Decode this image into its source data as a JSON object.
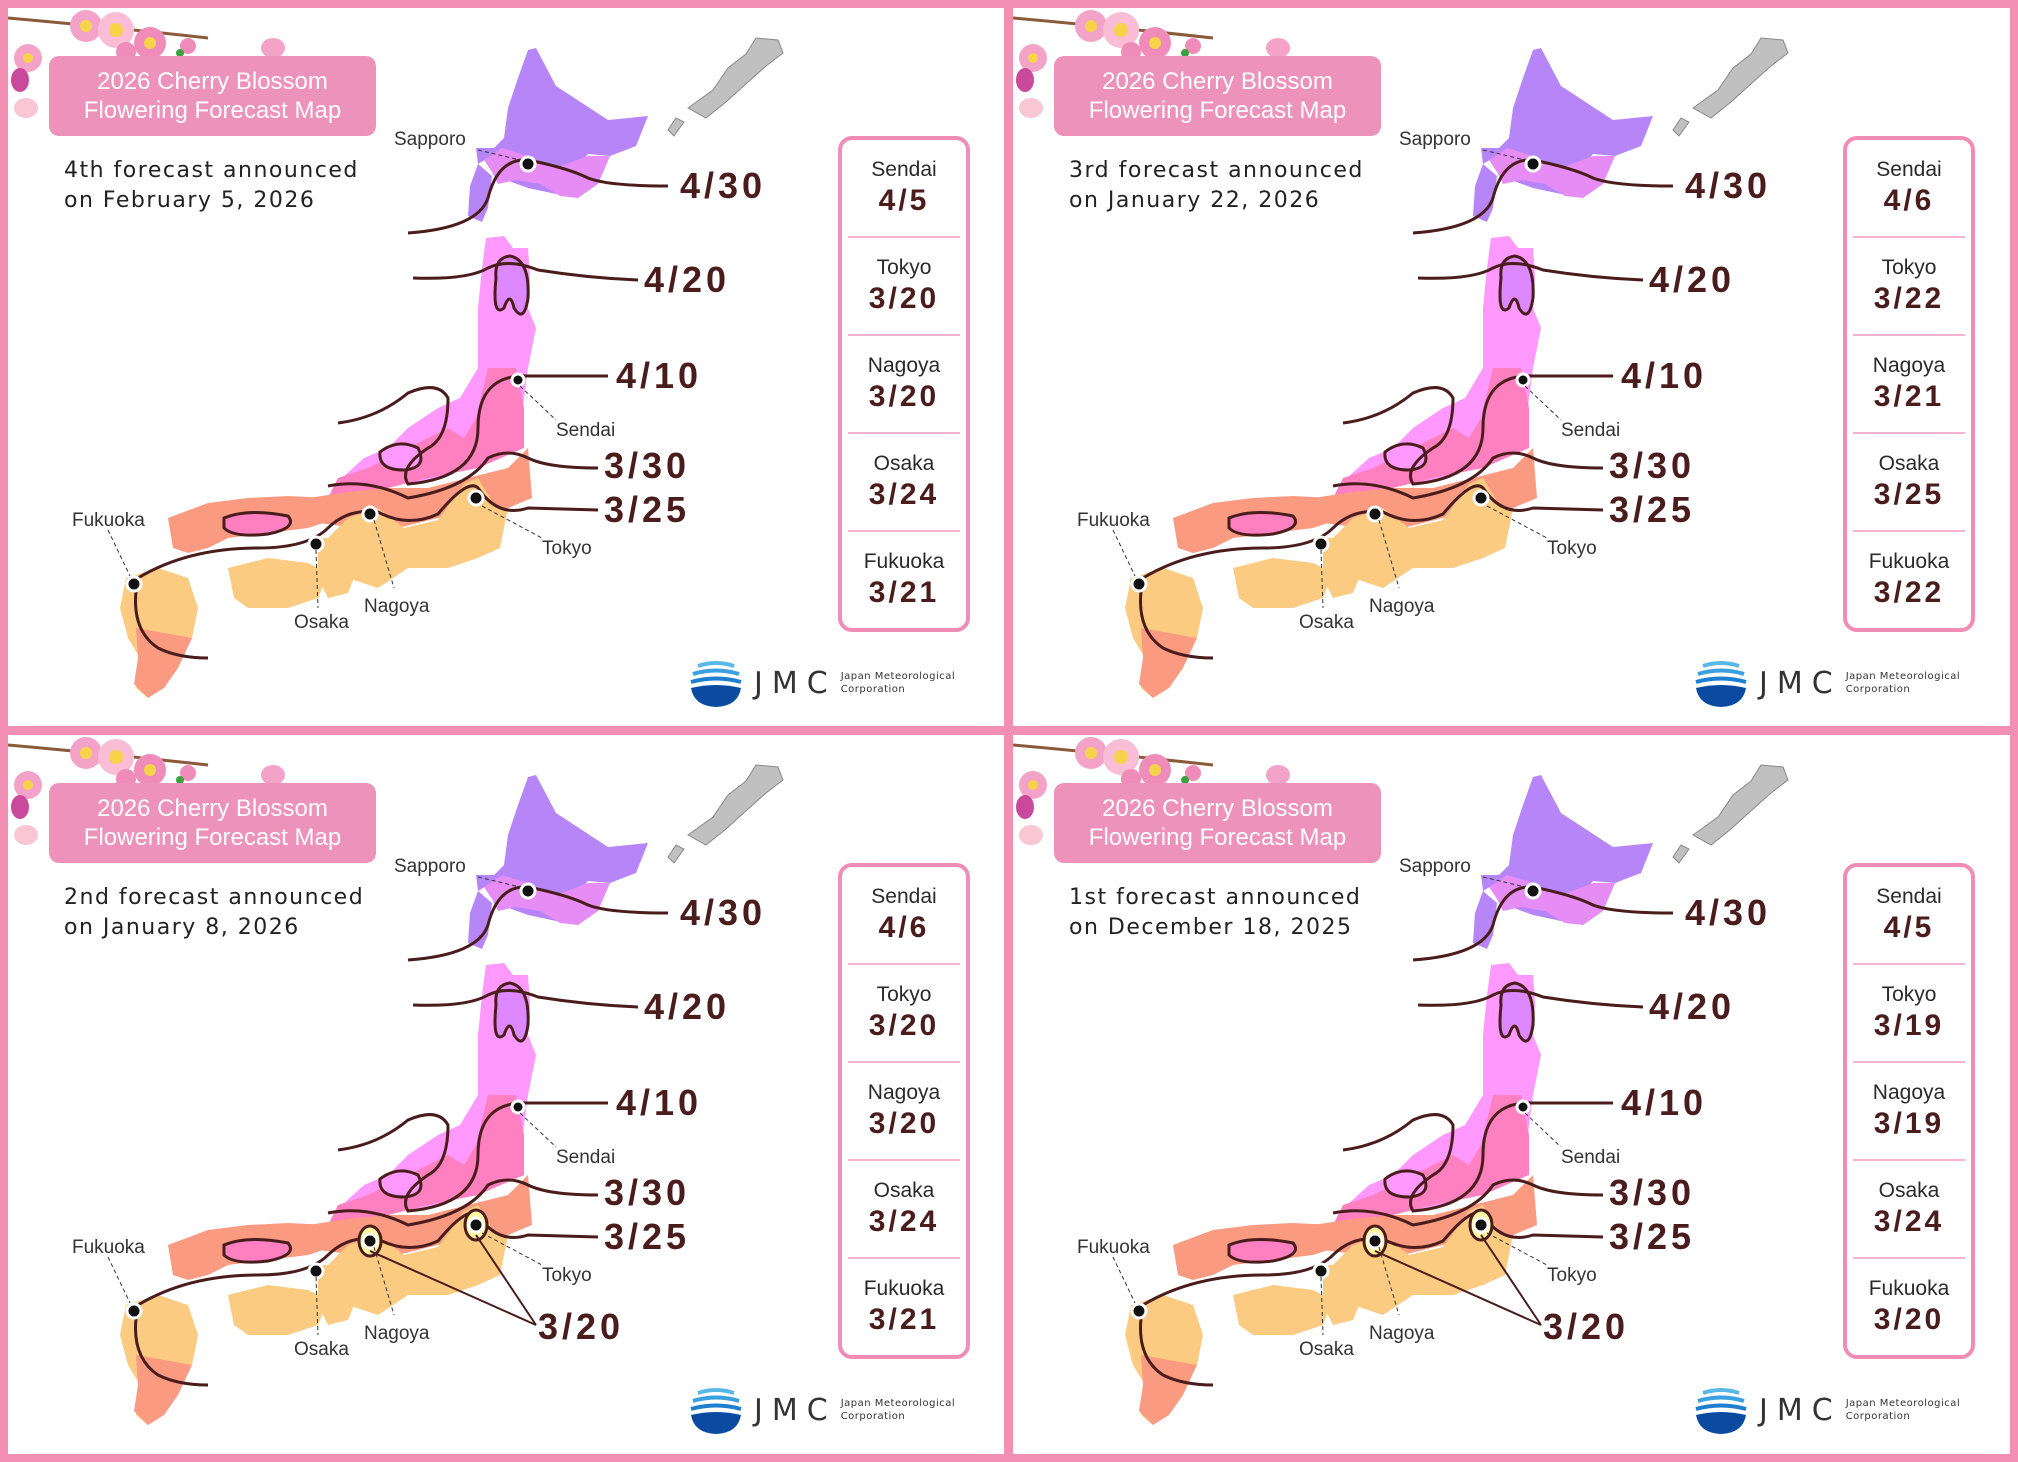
{
  "colors": {
    "border": "#f38fb2",
    "badge": "#ec92bb",
    "date_text": "#4a1c1c",
    "zone_hokkaido_north": "#b686f8",
    "zone_4_30": "#e58cf5",
    "zone_4_20": "#e58cf5",
    "zone_4_10": "#ff99ff",
    "zone_3_30": "#ff80c0",
    "zone_3_25": "#fa9a80",
    "zone_3_20": "#fccb82",
    "island_gray": "#c0c0c0",
    "logo_blue": "#0a4aa0"
  },
  "chart_data": {
    "type": "table",
    "title": "2026 Cherry Blossom Flowering Forecast Map",
    "columns": [
      "Forecast",
      "Announced",
      "Sendai",
      "Tokyo",
      "Nagoya",
      "Osaka",
      "Fukuoka"
    ],
    "rows": [
      [
        "4th",
        "February 5, 2026",
        "4/5",
        "3/20",
        "3/20",
        "3/24",
        "3/21"
      ],
      [
        "3rd",
        "January 22, 2026",
        "4/6",
        "3/22",
        "3/21",
        "3/25",
        "3/22"
      ],
      [
        "2nd",
        "January 8, 2026",
        "4/6",
        "3/20",
        "3/20",
        "3/24",
        "3/21"
      ],
      [
        "1st",
        "December 18, 2025",
        "4/5",
        "3/19",
        "3/19",
        "3/24",
        "3/20"
      ]
    ],
    "isoline_labels": [
      "4/30",
      "4/20",
      "4/10",
      "3/30",
      "3/25",
      "3/20"
    ]
  },
  "panels": [
    {
      "title_line1": "2026 Cherry Blossom",
      "title_line2": "Flowering Forecast Map",
      "announce_line1": "4th forecast announced",
      "announce_line2": "on February 5, 2026",
      "cities": [
        {
          "name": "Sendai",
          "date": "4/5"
        },
        {
          "name": "Tokyo",
          "date": "3/20"
        },
        {
          "name": "Nagoya",
          "date": "3/20"
        },
        {
          "name": "Osaka",
          "date": "3/24"
        },
        {
          "name": "Fukuoka",
          "date": "3/21"
        }
      ],
      "map_places": {
        "sapporo": "Sapporo",
        "sendai": "Sendai",
        "tokyo": "Tokyo",
        "nagoya": "Nagoya",
        "osaka": "Osaka",
        "fukuoka": "Fukuoka"
      },
      "isolines": {
        "l430": "4/30",
        "l420": "4/20",
        "l410": "4/10",
        "l330": "3/30",
        "l325": "3/25",
        "l320": ""
      },
      "logo": {
        "mark": "JMC",
        "line1": "Japan Meteorological",
        "line2": "Corporation"
      }
    },
    {
      "title_line1": "2026 Cherry Blossom",
      "title_line2": "Flowering Forecast Map",
      "announce_line1": "3rd forecast announced",
      "announce_line2": "on January 22, 2026",
      "cities": [
        {
          "name": "Sendai",
          "date": "4/6"
        },
        {
          "name": "Tokyo",
          "date": "3/22"
        },
        {
          "name": "Nagoya",
          "date": "3/21"
        },
        {
          "name": "Osaka",
          "date": "3/25"
        },
        {
          "name": "Fukuoka",
          "date": "3/22"
        }
      ],
      "map_places": {
        "sapporo": "Sapporo",
        "sendai": "Sendai",
        "tokyo": "Tokyo",
        "nagoya": "Nagoya",
        "osaka": "Osaka",
        "fukuoka": "Fukuoka"
      },
      "isolines": {
        "l430": "4/30",
        "l420": "4/20",
        "l410": "4/10",
        "l330": "3/30",
        "l325": "3/25",
        "l320": ""
      },
      "logo": {
        "mark": "JMC",
        "line1": "Japan Meteorological",
        "line2": "Corporation"
      }
    },
    {
      "title_line1": "2026 Cherry Blossom",
      "title_line2": "Flowering Forecast Map",
      "announce_line1": "2nd forecast announced",
      "announce_line2": "on January 8, 2026",
      "cities": [
        {
          "name": "Sendai",
          "date": "4/6"
        },
        {
          "name": "Tokyo",
          "date": "3/20"
        },
        {
          "name": "Nagoya",
          "date": "3/20"
        },
        {
          "name": "Osaka",
          "date": "3/24"
        },
        {
          "name": "Fukuoka",
          "date": "3/21"
        }
      ],
      "map_places": {
        "sapporo": "Sapporo",
        "sendai": "Sendai",
        "tokyo": "Tokyo",
        "nagoya": "Nagoya",
        "osaka": "Osaka",
        "fukuoka": "Fukuoka"
      },
      "isolines": {
        "l430": "4/30",
        "l420": "4/20",
        "l410": "4/10",
        "l330": "3/30",
        "l325": "3/25",
        "l320": "3/20"
      },
      "logo": {
        "mark": "JMC",
        "line1": "Japan Meteorological",
        "line2": "Corporation"
      }
    },
    {
      "title_line1": "2026 Cherry Blossom",
      "title_line2": "Flowering Forecast Map",
      "announce_line1": "1st forecast announced",
      "announce_line2": "on December 18, 2025",
      "cities": [
        {
          "name": "Sendai",
          "date": "4/5"
        },
        {
          "name": "Tokyo",
          "date": "3/19"
        },
        {
          "name": "Nagoya",
          "date": "3/19"
        },
        {
          "name": "Osaka",
          "date": "3/24"
        },
        {
          "name": "Fukuoka",
          "date": "3/20"
        }
      ],
      "map_places": {
        "sapporo": "Sapporo",
        "sendai": "Sendai",
        "tokyo": "Tokyo",
        "nagoya": "Nagoya",
        "osaka": "Osaka",
        "fukuoka": "Fukuoka"
      },
      "isolines": {
        "l430": "4/30",
        "l420": "4/20",
        "l410": "4/10",
        "l330": "3/30",
        "l325": "3/25",
        "l320": "3/20"
      },
      "logo": {
        "mark": "JMC",
        "line1": "Japan Meteorological",
        "line2": "Corporation"
      }
    }
  ]
}
